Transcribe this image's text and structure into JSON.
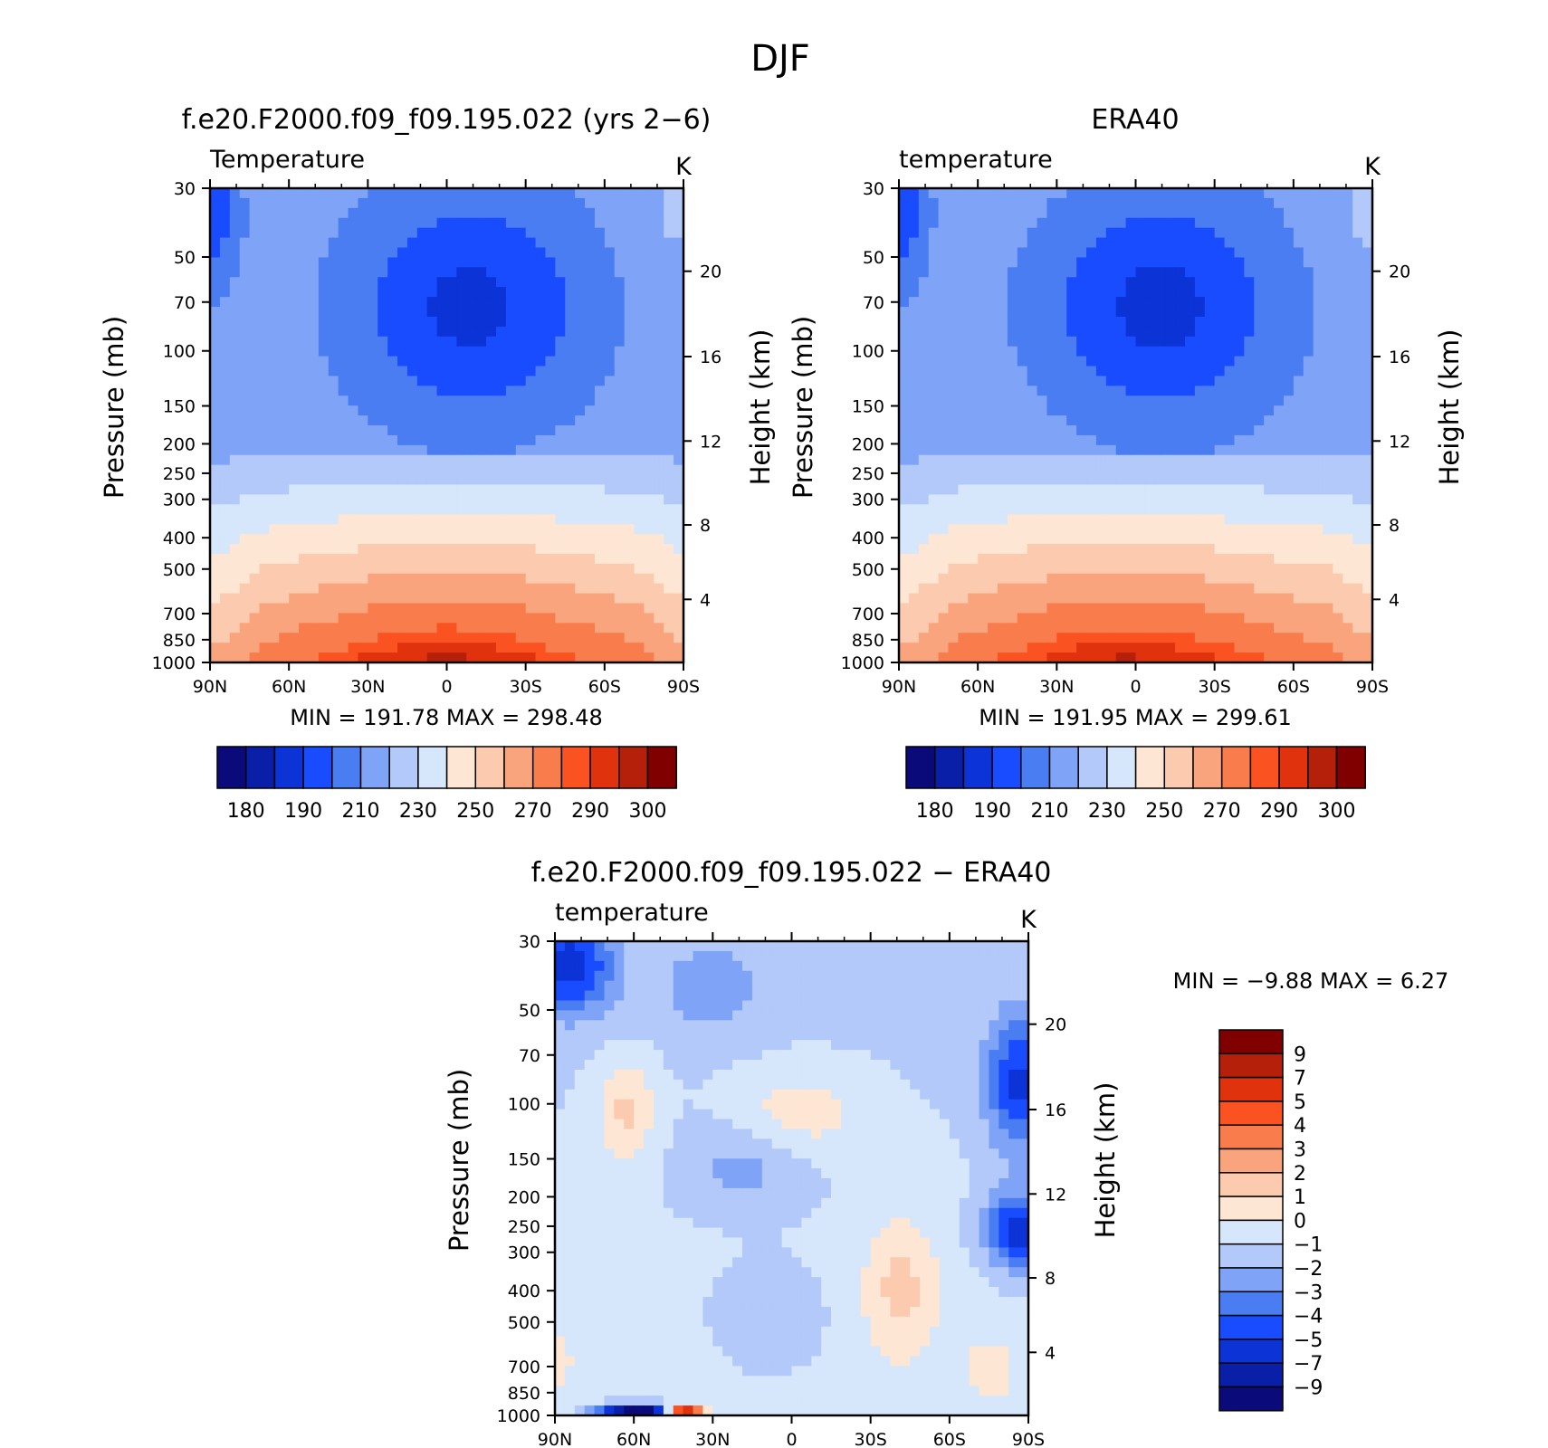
{
  "figure_title": "DJF",
  "chart_data": [
    {
      "type": "heatmap",
      "id": "model",
      "title": "f.e20.F2000.f09_f09.195.022 (yrs 2−6)",
      "left_label": "Temperature",
      "right_label": "K",
      "ylabel": "Pressure (mb)",
      "y2label": "Height (km)",
      "x_ticks": [
        "90N",
        "60N",
        "30N",
        "0",
        "30S",
        "60S",
        "90S"
      ],
      "y_ticks": [
        "30",
        "50",
        "70",
        "100",
        "150",
        "200",
        "250",
        "300",
        "400",
        "500",
        "700",
        "850",
        "1000"
      ],
      "y2_ticks": [
        "20",
        "16",
        "12",
        "8",
        "4"
      ],
      "min_label": "MIN",
      "min_value": "191.78",
      "max_label": "MAX",
      "max_value": "298.48",
      "colorbar_ticks": [
        "180",
        "190",
        "210",
        "230",
        "250",
        "270",
        "290",
        "300"
      ]
    },
    {
      "type": "heatmap",
      "id": "obs",
      "title": "ERA40",
      "left_label": "temperature",
      "right_label": "K",
      "ylabel": "Pressure (mb)",
      "y2label": "Height (km)",
      "x_ticks": [
        "90N",
        "60N",
        "30N",
        "0",
        "30S",
        "60S",
        "90S"
      ],
      "y_ticks": [
        "30",
        "50",
        "70",
        "100",
        "150",
        "200",
        "250",
        "300",
        "400",
        "500",
        "700",
        "850",
        "1000"
      ],
      "y2_ticks": [
        "20",
        "16",
        "12",
        "8",
        "4"
      ],
      "min_label": "MIN",
      "min_value": "191.95",
      "max_label": "MAX",
      "max_value": "299.61",
      "colorbar_ticks": [
        "180",
        "190",
        "210",
        "230",
        "250",
        "270",
        "290",
        "300"
      ]
    },
    {
      "type": "heatmap",
      "id": "diff",
      "title": "f.e20.F2000.f09_f09.195.022 − ERA40",
      "left_label": "temperature",
      "right_label": "K",
      "ylabel": "Pressure (mb)",
      "y2label": "Height (km)",
      "x_ticks": [
        "90N",
        "60N",
        "30N",
        "0",
        "30S",
        "60S",
        "90S"
      ],
      "y_ticks": [
        "30",
        "50",
        "70",
        "100",
        "150",
        "200",
        "250",
        "300",
        "400",
        "500",
        "700",
        "850",
        "1000"
      ],
      "y2_ticks": [
        "20",
        "16",
        "12",
        "8",
        "4"
      ],
      "min_label": "MIN",
      "min_value": "−9.88",
      "max_label": "MAX",
      "max_value": "6.27",
      "colorbar_ticks": [
        "9",
        "7",
        "5",
        "4",
        "3",
        "2",
        "1",
        "0",
        "−1",
        "−2",
        "−3",
        "−4",
        "−5",
        "−7",
        "−9"
      ]
    }
  ],
  "palette": [
    "#0a0a7a",
    "#0a1fa8",
    "#0b33d6",
    "#1a4cff",
    "#4a7cf2",
    "#7fa4f7",
    "#b3c9fa",
    "#d6e7fb",
    "#fde6d3",
    "#fccaae",
    "#f9a47c",
    "#f97c4c",
    "#fb5221",
    "#e0320d",
    "#b5200a",
    "#800000"
  ]
}
